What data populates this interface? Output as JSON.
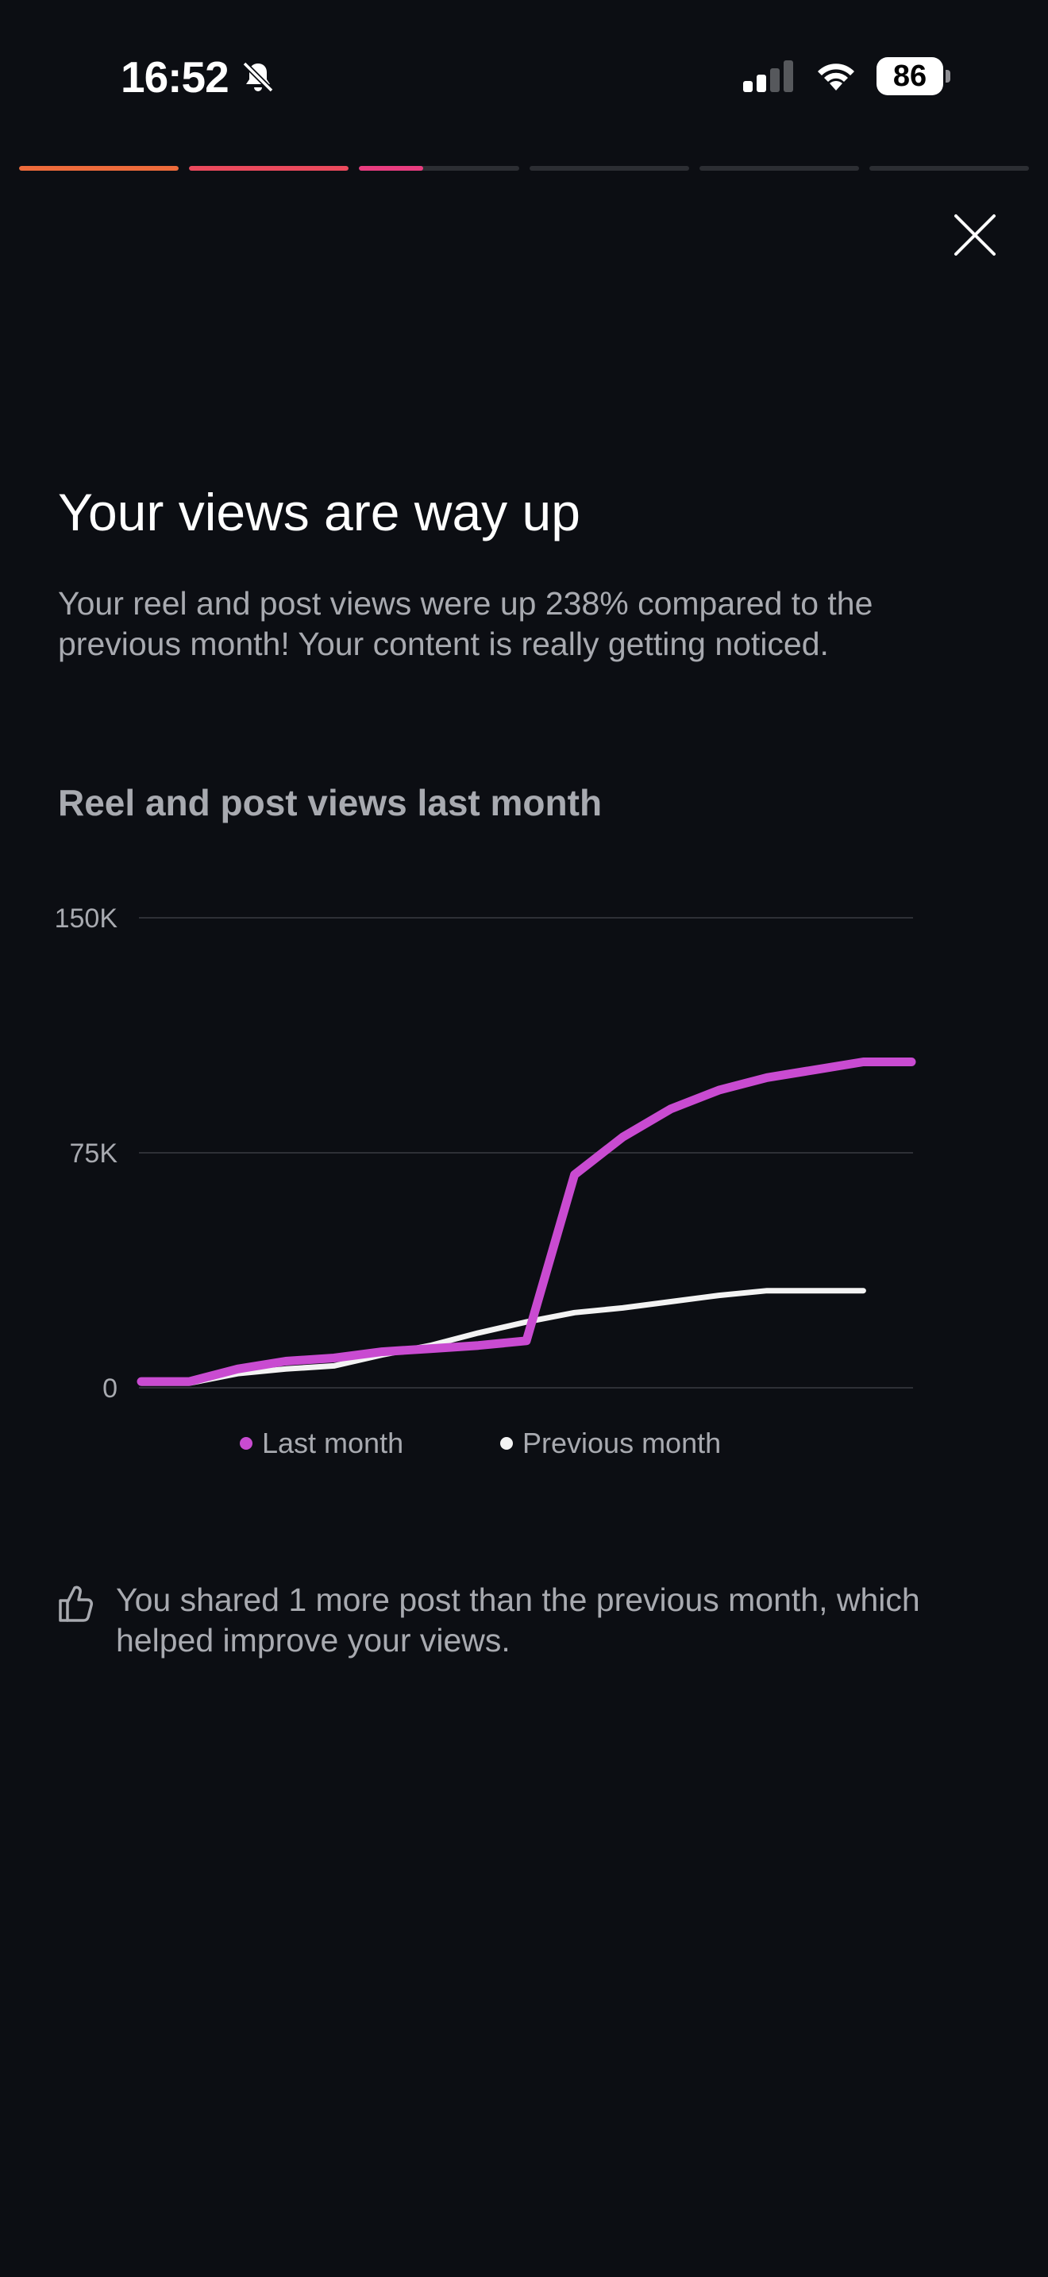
{
  "status_bar": {
    "time": "16:52",
    "battery": "86",
    "icons": [
      "bell-slash-icon",
      "cellular-signal-icon",
      "wifi-icon",
      "battery-icon"
    ]
  },
  "story_progress": {
    "segments": [
      {
        "fill": 1.0,
        "color": "#ee6b3b"
      },
      {
        "fill": 1.0,
        "color": "#ec4a5d"
      },
      {
        "fill": 0.4,
        "color": "#e93d80"
      },
      {
        "fill": 0,
        "color": "#e93d80"
      },
      {
        "fill": 0,
        "color": "#e93d80"
      },
      {
        "fill": 0,
        "color": "#e93d80"
      }
    ]
  },
  "close_icon": "close-icon",
  "headline": "Your views are way up",
  "description": "Your reel and post views were up 238% compared to the previous month! Your content is really getting noticed.",
  "chart_title": "Reel and post views last month",
  "chart_data": {
    "type": "line",
    "title": "",
    "xlabel": "",
    "ylabel": "",
    "ylim": [
      0,
      150000
    ],
    "y_ticks": [
      {
        "value": 0,
        "label": "0"
      },
      {
        "value": 75000,
        "label": "75K"
      },
      {
        "value": 150000,
        "label": "150K"
      }
    ],
    "grid": true,
    "legend_position": "bottom-center",
    "series": [
      {
        "name": "Last month",
        "color": "#c94bd1",
        "x": [
          1,
          2,
          3,
          4,
          5,
          6,
          7,
          8,
          9,
          10,
          11,
          12,
          13,
          14,
          15,
          16,
          17
        ],
        "values": [
          2000,
          2000,
          6000,
          8500,
          9500,
          11500,
          12500,
          13500,
          15000,
          68000,
          80000,
          89000,
          95000,
          99000,
          101500,
          104000,
          104000
        ]
      },
      {
        "name": "Previous month",
        "color": "#f3f3f3",
        "x": [
          1,
          2,
          3,
          4,
          5,
          6,
          7,
          8,
          9,
          10,
          11,
          12,
          13,
          14,
          15,
          16
        ],
        "values": [
          1500,
          1500,
          4500,
          6000,
          7000,
          10500,
          13500,
          17500,
          21000,
          24000,
          25500,
          27500,
          29500,
          31000,
          31000,
          31000
        ]
      }
    ]
  },
  "note": {
    "icon": "thumbs-up-icon",
    "text": "You shared 1 more post than the previous month, which helped improve your views."
  }
}
